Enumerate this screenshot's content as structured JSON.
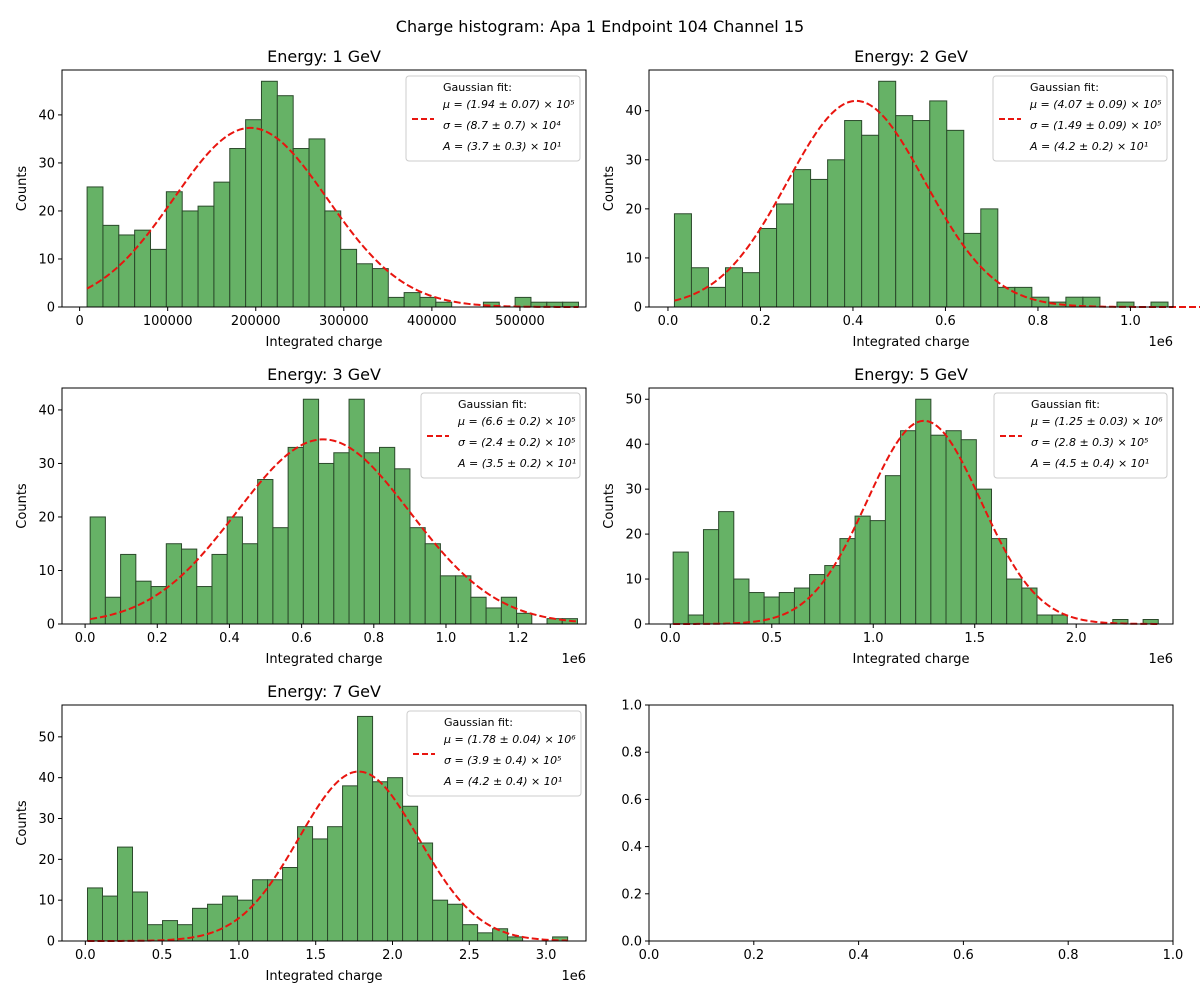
{
  "figure": {
    "suptitle": "Charge histogram: Apa 1 Endpoint 104 Channel 15",
    "bar_fill": "#66b266",
    "bar_edge": "#2b4a2b",
    "fit_color": "#e8150f"
  },
  "chart_data": [
    {
      "type": "bar",
      "title": "Energy: 1 GeV",
      "xlabel": "Integrated charge",
      "ylabel": "Counts",
      "offset_text": "",
      "x_ticks": [
        0,
        100000,
        200000,
        300000,
        400000,
        500000
      ],
      "x_tick_labels": [
        "0",
        "100000",
        "200000",
        "300000",
        "400000",
        "500000"
      ],
      "y_ticks": [
        0,
        10,
        20,
        30,
        40
      ],
      "xlim": [
        -20000,
        575000
      ],
      "ylim": [
        0,
        49.35
      ],
      "bin_start": 8500,
      "bin_width": 18000,
      "counts": [
        25,
        17,
        15,
        16,
        12,
        24,
        20,
        21,
        26,
        33,
        39,
        47,
        44,
        33,
        35,
        20,
        12,
        9,
        8,
        2,
        3,
        2,
        1,
        0,
        0,
        1,
        0,
        2,
        1,
        1,
        1
      ],
      "fit": {
        "mu": 194000,
        "sigma": 87000,
        "A": 37.3
      },
      "legend": {
        "header": "Gaussian fit:",
        "mu": "μ = (1.94 ± 0.07) × 10⁵",
        "sigma": "σ = (8.7 ± 0.7) × 10⁴",
        "amp": "A = (3.7 ± 0.3) × 10¹"
      }
    },
    {
      "type": "bar",
      "title": "Energy: 2 GeV",
      "xlabel": "Integrated charge",
      "ylabel": "Counts",
      "offset_text": "1e6",
      "x_ticks": [
        0,
        0.2,
        0.4,
        0.6,
        0.8,
        1.0
      ],
      "x_tick_labels": [
        "0.0",
        "0.2",
        "0.4",
        "0.6",
        "0.8",
        "1.0"
      ],
      "y_ticks": [
        0,
        10,
        20,
        30,
        40
      ],
      "xlim": [
        -0.041,
        1.092
      ],
      "ylim": [
        0,
        48.3
      ],
      "bin_start": 0.014,
      "bin_width": 0.0368,
      "counts": [
        19,
        8,
        4,
        8,
        7,
        16,
        21,
        28,
        26,
        30,
        38,
        35,
        46,
        39,
        38,
        42,
        36,
        15,
        20,
        4,
        4,
        2,
        1,
        2,
        2,
        0,
        1,
        0,
        1,
        0,
        0,
        1
      ],
      "fit": {
        "mu": 0.407,
        "sigma": 0.149,
        "A": 42.0
      },
      "legend": {
        "header": "Gaussian fit:",
        "mu": "μ = (4.07 ± 0.09) × 10⁵",
        "sigma": "σ = (1.49 ± 0.09) × 10⁵",
        "amp": "A = (4.2 ± 0.2) × 10¹"
      }
    },
    {
      "type": "bar",
      "title": "Energy: 3 GeV",
      "xlabel": "Integrated charge",
      "ylabel": "Counts",
      "offset_text": "1e6",
      "x_ticks": [
        0,
        0.2,
        0.4,
        0.6,
        0.8,
        1.0,
        1.2
      ],
      "x_tick_labels": [
        "0.0",
        "0.2",
        "0.4",
        "0.6",
        "0.8",
        "1.0",
        "1.2"
      ],
      "y_ticks": [
        0,
        10,
        20,
        30,
        40
      ],
      "xlim": [
        -0.064,
        1.388
      ],
      "ylim": [
        0,
        44.1
      ],
      "bin_start": 0.014,
      "bin_width": 0.0422,
      "counts": [
        20,
        5,
        13,
        8,
        7,
        15,
        14,
        7,
        13,
        20,
        15,
        27,
        18,
        33,
        42,
        30,
        32,
        42,
        32,
        33,
        29,
        18,
        15,
        9,
        9,
        5,
        3,
        5,
        2,
        0,
        1,
        1
      ],
      "fit": {
        "mu": 0.66,
        "sigma": 0.24,
        "A": 34.5
      },
      "legend": {
        "header": "Gaussian fit:",
        "mu": "μ = (6.6 ± 0.2) × 10⁵",
        "sigma": "σ = (2.4 ± 0.2) × 10⁵",
        "amp": "A = (3.5 ± 0.2) × 10¹"
      }
    },
    {
      "type": "bar",
      "title": "Energy: 5 GeV",
      "xlabel": "Integrated charge",
      "ylabel": "Counts",
      "offset_text": "1e6",
      "x_ticks": [
        0,
        0.5,
        1.0,
        1.5,
        2.0
      ],
      "x_tick_labels": [
        "0.0",
        "0.5",
        "1.0",
        "1.5",
        "2.0"
      ],
      "y_ticks": [
        0,
        10,
        20,
        30,
        40,
        50
      ],
      "xlim": [
        -0.105,
        2.477
      ],
      "ylim": [
        0,
        52.5
      ],
      "bin_start": 0.014,
      "bin_width": 0.0747,
      "counts": [
        16,
        2,
        21,
        25,
        10,
        7,
        6,
        7,
        8,
        11,
        13,
        19,
        24,
        23,
        33,
        43,
        50,
        42,
        43,
        41,
        30,
        19,
        10,
        8,
        2,
        2,
        0,
        0,
        0,
        1,
        0,
        1
      ],
      "fit": {
        "mu": 1.25,
        "sigma": 0.28,
        "A": 45.2
      },
      "legend": {
        "header": "Gaussian fit:",
        "mu": "μ = (1.25 ± 0.03) × 10⁶",
        "sigma": "σ = (2.8 ± 0.3) × 10⁵",
        "amp": "A = (4.5 ± 0.4) × 10¹"
      }
    },
    {
      "type": "bar",
      "title": "Energy: 7 GeV",
      "xlabel": "Integrated charge",
      "ylabel": "Counts",
      "offset_text": "1e6",
      "x_ticks": [
        0,
        0.5,
        1.0,
        1.5,
        2.0,
        2.5,
        3.0
      ],
      "x_tick_labels": [
        "0.0",
        "0.5",
        "1.0",
        "1.5",
        "2.0",
        "2.5",
        "3.0"
      ],
      "y_ticks": [
        0,
        10,
        20,
        30,
        40,
        50
      ],
      "xlim": [
        -0.152,
        3.26
      ],
      "ylim": [
        0,
        57.8
      ],
      "bin_start": 0.014,
      "bin_width": 0.0977,
      "counts": [
        13,
        11,
        23,
        12,
        4,
        5,
        4,
        8,
        9,
        11,
        10,
        15,
        15,
        18,
        28,
        25,
        28,
        38,
        55,
        39,
        40,
        33,
        24,
        10,
        9,
        4,
        2,
        3,
        1,
        0,
        0,
        1
      ],
      "fit": {
        "mu": 1.78,
        "sigma": 0.39,
        "A": 41.5
      },
      "legend": {
        "header": "Gaussian fit:",
        "mu": "μ = (1.78 ± 0.04) × 10⁶",
        "sigma": "σ = (3.9 ± 0.4) × 10⁵",
        "amp": "A = (4.2 ± 0.4) × 10¹"
      }
    },
    {
      "type": "empty",
      "x_ticks": [
        0,
        0.2,
        0.4,
        0.6,
        0.8,
        1.0
      ],
      "x_tick_labels": [
        "0.0",
        "0.2",
        "0.4",
        "0.6",
        "0.8",
        "1.0"
      ],
      "y_ticks": [
        0,
        0.2,
        0.4,
        0.6,
        0.8,
        1.0
      ],
      "y_tick_labels": [
        "0.0",
        "0.2",
        "0.4",
        "0.6",
        "0.8",
        "1.0"
      ],
      "xlim": [
        0,
        1
      ],
      "ylim": [
        0,
        1
      ]
    }
  ]
}
